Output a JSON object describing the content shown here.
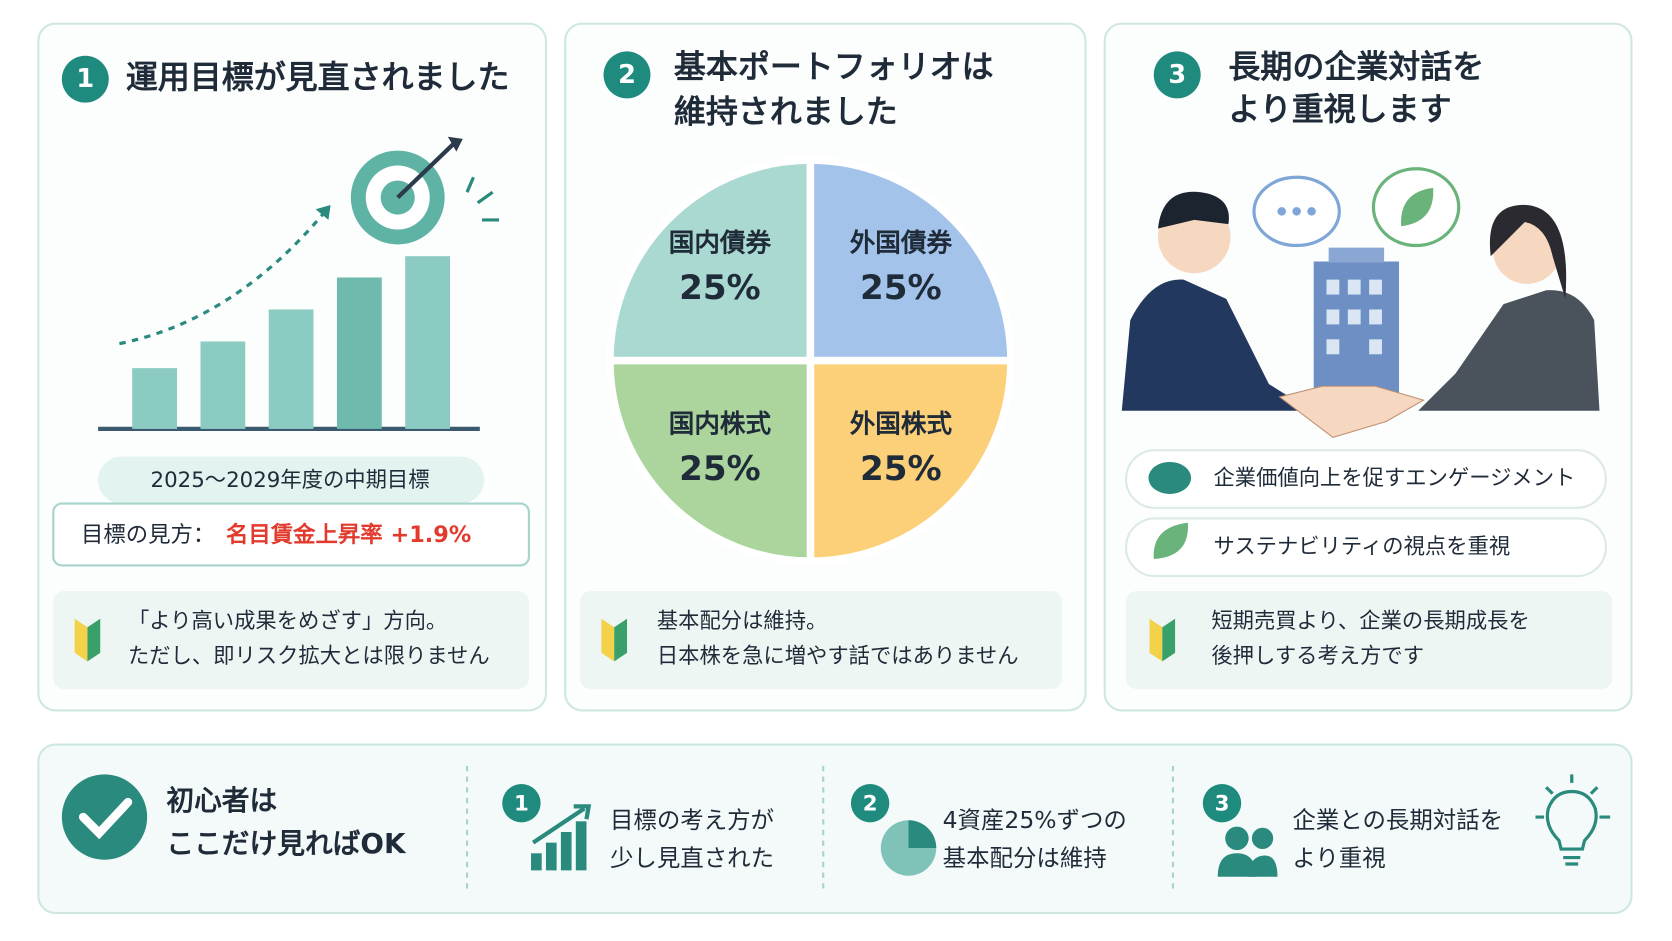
{
  "panels": [
    {
      "number": "1",
      "title": [
        "運用目標が見直されました"
      ],
      "goal_period": "2025〜2029年度の中期目標",
      "goal_label": "目標の見方：",
      "goal_value": "名目賃金上昇率 +1.9%",
      "note": [
        "「より高い成果をめざす」方向。",
        "ただし、即リスク拡大とは限りません"
      ]
    },
    {
      "number": "2",
      "title": [
        "基本ポートフォリオは",
        "維持されました"
      ],
      "pie": {
        "slices": [
          {
            "label": "国内債券",
            "value": 25,
            "value_label": "25%",
            "color": "#a9d9d1"
          },
          {
            "label": "外国債券",
            "value": 25,
            "value_label": "25%",
            "color": "#a3c3ea"
          },
          {
            "label": "外国株式",
            "value": 25,
            "value_label": "25%",
            "color": "#fbd078"
          },
          {
            "label": "国内株式",
            "value": 25,
            "value_label": "25%",
            "color": "#abd59c"
          }
        ]
      },
      "note": [
        "基本配分は維持。",
        "日本株を急に増やす話ではありません"
      ]
    },
    {
      "number": "3",
      "title": [
        "長期の企業対話を",
        "より重視します"
      ],
      "points": [
        "企業価値向上を促すエンゲージメント",
        "サステナビリティの視点を重視"
      ],
      "note": [
        "短期売買より、企業の長期成長を",
        "後押しする考え方です"
      ]
    }
  ],
  "summary": {
    "title": [
      "初心者は",
      "ここだけ見ればOK"
    ],
    "items": [
      {
        "number": "1",
        "text": [
          "目標の考え方が",
          "少し見直された"
        ]
      },
      {
        "number": "2",
        "text": [
          "4資産25%ずつの",
          "基本配分は維持"
        ]
      },
      {
        "number": "3",
        "text": [
          "企業との長期対話を",
          "より重視"
        ]
      }
    ]
  }
}
